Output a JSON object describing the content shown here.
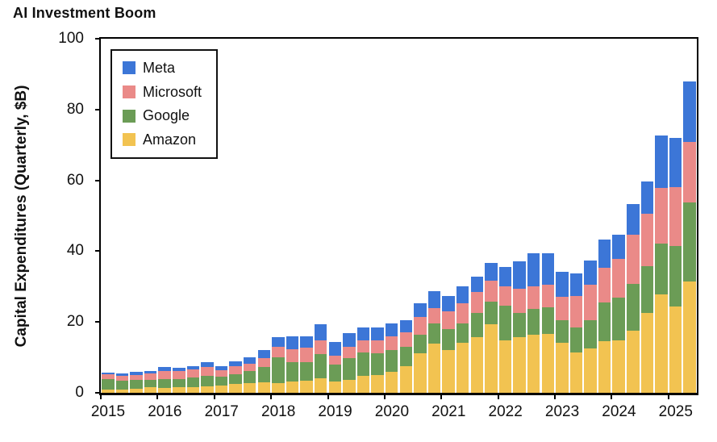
{
  "header": {
    "title": "AI Investment Boom"
  },
  "legend": {
    "position": "upper-left",
    "entries": [
      {
        "label": "Meta",
        "color": "#3c76d7"
      },
      {
        "label": "Microsoft",
        "color": "#ea8a88"
      },
      {
        "label": "Google",
        "color": "#6b9c56"
      },
      {
        "label": "Amazon",
        "color": "#f2c351"
      }
    ]
  },
  "chart_data": {
    "type": "bar",
    "stacked": true,
    "title": "AI Investment Boom",
    "xlabel": "",
    "ylabel": "Capital Expenditures (Quarterly, $B)",
    "ylim": [
      0,
      100
    ],
    "yticks": [
      0,
      20,
      40,
      60,
      80,
      100
    ],
    "grid": false,
    "frame": "full-box",
    "x_year_ticks": [
      "2015",
      "2016",
      "2017",
      "2018",
      "2019",
      "2020",
      "2021",
      "2022",
      "2023",
      "2024",
      "2025"
    ],
    "quarters": [
      "2015 Q1",
      "2015 Q2",
      "2015 Q3",
      "2015 Q4",
      "2016 Q1",
      "2016 Q2",
      "2016 Q3",
      "2016 Q4",
      "2017 Q1",
      "2017 Q2",
      "2017 Q3",
      "2017 Q4",
      "2018 Q1",
      "2018 Q2",
      "2018 Q3",
      "2018 Q4",
      "2019 Q1",
      "2019 Q2",
      "2019 Q3",
      "2019 Q4",
      "2020 Q1",
      "2020 Q2",
      "2020 Q3",
      "2020 Q4",
      "2021 Q1",
      "2021 Q2",
      "2021 Q3",
      "2021 Q4",
      "2022 Q1",
      "2022 Q2",
      "2022 Q3",
      "2022 Q4",
      "2023 Q1",
      "2023 Q2",
      "2023 Q3",
      "2023 Q4",
      "2024 Q1",
      "2024 Q2",
      "2024 Q3",
      "2024 Q4",
      "2025 Q1",
      "2025 Q2"
    ],
    "series": [
      {
        "name": "Amazon",
        "color": "#f2c351",
        "values": [
          0.9,
          1.0,
          1.2,
          1.5,
          1.4,
          1.7,
          1.7,
          1.8,
          2.1,
          2.5,
          2.7,
          2.9,
          2.7,
          3.1,
          3.4,
          4.0,
          3.3,
          3.6,
          4.7,
          5.1,
          6.0,
          7.5,
          11.1,
          14.0,
          12.1,
          14.1,
          15.7,
          19.3,
          14.9,
          15.7,
          16.4,
          16.6,
          14.2,
          11.5,
          12.5,
          14.6,
          14.9,
          17.6,
          22.6,
          27.8,
          24.3,
          31.4
        ]
      },
      {
        "name": "Google",
        "color": "#6b9c56",
        "values": [
          2.9,
          2.5,
          2.4,
          2.1,
          2.4,
          2.1,
          2.6,
          3.1,
          2.5,
          2.8,
          3.5,
          4.3,
          7.3,
          5.5,
          5.3,
          7.0,
          4.6,
          6.1,
          6.7,
          6.1,
          6.0,
          5.4,
          5.4,
          5.5,
          5.9,
          5.5,
          6.8,
          6.4,
          9.8,
          6.8,
          7.3,
          7.6,
          6.3,
          6.9,
          8.1,
          11.0,
          12.0,
          13.2,
          13.1,
          14.3,
          17.2,
          22.4
        ]
      },
      {
        "name": "Microsoft",
        "color": "#ea8a88",
        "values": [
          1.4,
          1.4,
          1.5,
          1.8,
          2.3,
          2.3,
          2.2,
          2.5,
          1.7,
          2.3,
          2.1,
          2.6,
          2.9,
          3.8,
          4.0,
          3.9,
          2.6,
          3.4,
          3.4,
          3.5,
          3.9,
          4.2,
          4.9,
          4.5,
          5.1,
          5.8,
          5.9,
          5.9,
          5.3,
          6.9,
          6.3,
          6.3,
          6.6,
          8.9,
          9.9,
          9.7,
          11.0,
          13.9,
          14.9,
          15.8,
          16.7,
          17.1
        ]
      },
      {
        "name": "Meta",
        "color": "#3c76d7",
        "values": [
          0.5,
          0.6,
          0.8,
          0.7,
          1.1,
          1.0,
          1.1,
          1.3,
          1.3,
          1.4,
          1.8,
          2.3,
          2.8,
          3.5,
          3.3,
          4.4,
          3.8,
          3.8,
          3.7,
          3.8,
          3.7,
          3.4,
          3.8,
          4.8,
          4.3,
          4.7,
          4.5,
          5.1,
          5.5,
          7.7,
          9.5,
          9.0,
          7.1,
          6.4,
          6.8,
          7.9,
          6.7,
          8.5,
          9.2,
          14.8,
          13.7,
          17.0
        ]
      }
    ],
    "stack_order_bottom_to_top": [
      "Amazon",
      "Google",
      "Microsoft",
      "Meta"
    ],
    "legend_order": [
      "Meta",
      "Microsoft",
      "Google",
      "Amazon"
    ]
  }
}
